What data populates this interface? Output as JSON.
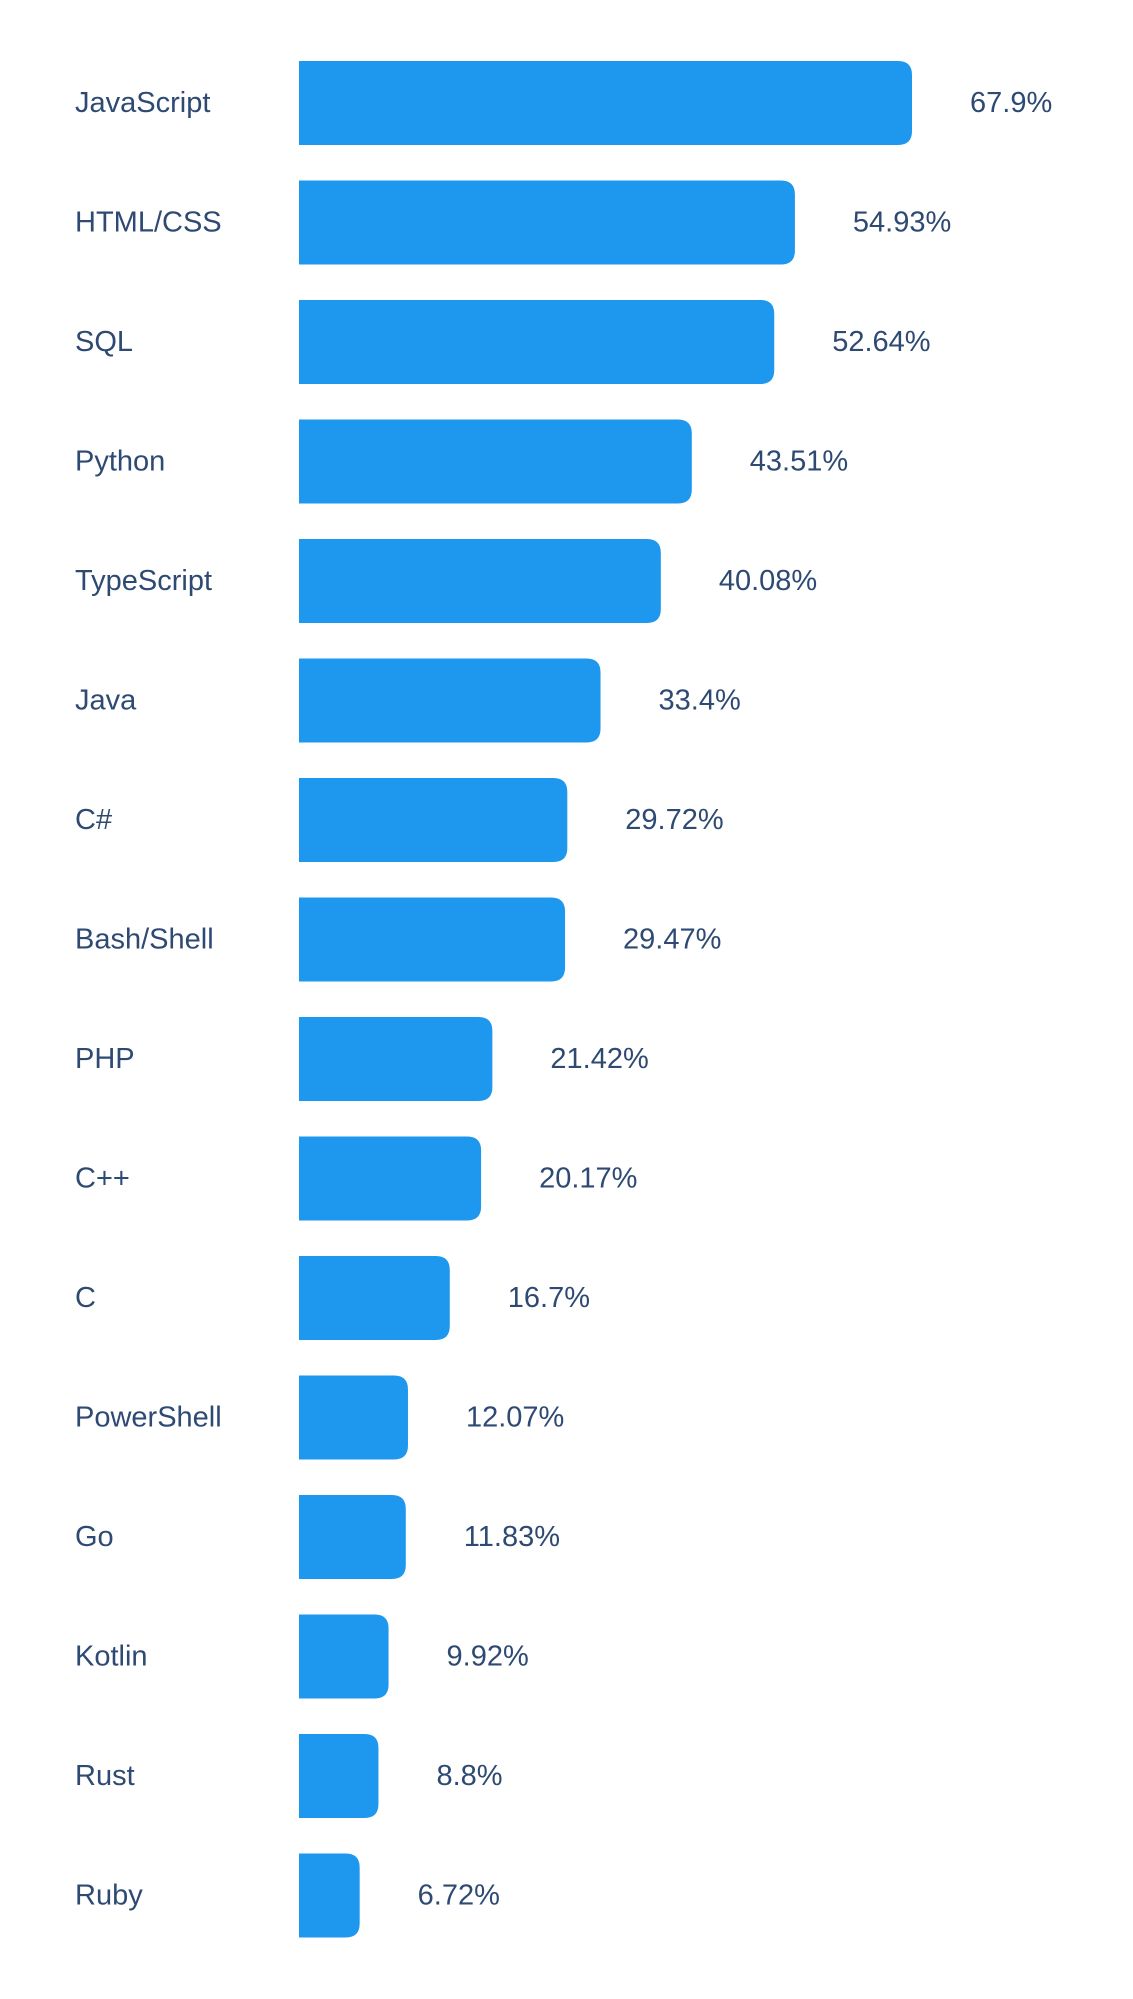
{
  "chart_data": {
    "type": "bar",
    "orientation": "horizontal",
    "categories": [
      "JavaScript",
      "HTML/CSS",
      "SQL",
      "Python",
      "TypeScript",
      "Java",
      "C#",
      "Bash/Shell",
      "PHP",
      "C++",
      "C",
      "PowerShell",
      "Go",
      "Kotlin",
      "Rust",
      "Ruby"
    ],
    "values": [
      67.9,
      54.93,
      52.64,
      43.51,
      40.08,
      33.4,
      29.72,
      29.47,
      21.42,
      20.17,
      16.7,
      12.07,
      11.83,
      9.92,
      8.8,
      6.72
    ],
    "value_labels": [
      "67.9%",
      "54.93%",
      "52.64%",
      "43.51%",
      "40.08%",
      "33.4%",
      "29.72%",
      "29.47%",
      "21.42%",
      "20.17%",
      "16.7%",
      "12.07%",
      "11.83%",
      "9.92%",
      "8.8%",
      "6.72%"
    ],
    "title": "",
    "xlabel": "",
    "ylabel": "",
    "grid": false,
    "legend": "none",
    "bar_color": "#1e97ee",
    "label_color": "#2e4a73"
  }
}
